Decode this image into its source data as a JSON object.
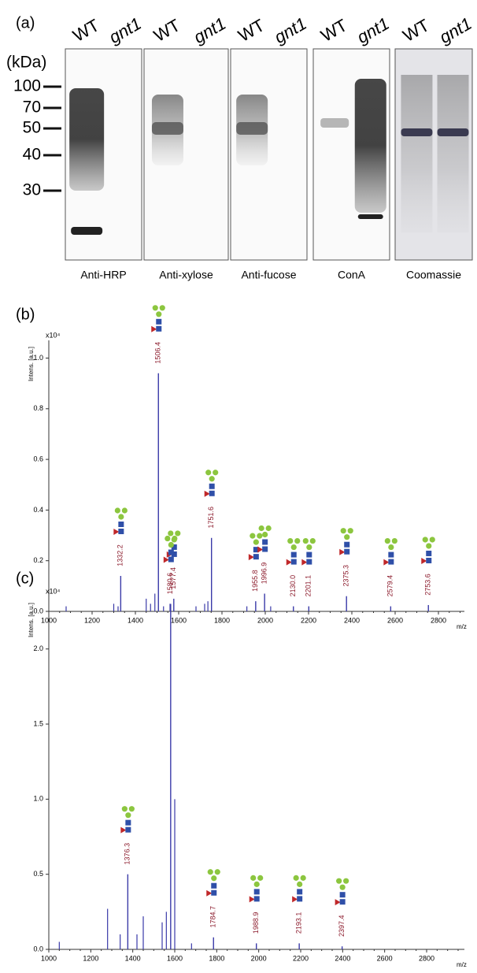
{
  "panel_a": {
    "label": "(a)",
    "unit": "(kDa)",
    "markers": [
      100,
      70,
      50,
      40,
      30
    ],
    "blots": [
      {
        "name": "Anti-HRP",
        "lanes": [
          "WT",
          "gnt1"
        ]
      },
      {
        "name": "Anti-xylose",
        "lanes": [
          "WT",
          "gnt1"
        ]
      },
      {
        "name": "Anti-fucose",
        "lanes": [
          "WT",
          "gnt1"
        ]
      },
      {
        "name": "ConA",
        "lanes": [
          "WT",
          "gnt1"
        ]
      },
      {
        "name": "Coomassie",
        "lanes": [
          "WT",
          "gnt1"
        ]
      }
    ]
  },
  "chart_data": [
    {
      "type": "spectrum",
      "label": "(b)",
      "y_label": "Intens. [a.u.]",
      "y_multiplier": "x10⁴",
      "x_label": "m/z",
      "xlim": [
        1000,
        2920
      ],
      "xticks": [
        1000,
        1200,
        1400,
        1600,
        1800,
        2000,
        2200,
        2400,
        2600,
        2800
      ],
      "ylim": [
        0,
        1.07
      ],
      "yticks": [
        {
          "value": 0,
          "label": "0.0"
        },
        0.2,
        0.4,
        0.6,
        0.8,
        {
          "value": 1,
          "label": "1.0"
        }
      ],
      "x": [
        1332.2,
        1506.4,
        1577.4,
        1751.6,
        1955.8,
        1996.9,
        2130.0,
        2201.1,
        2375.3,
        2579.4,
        2753.6
      ],
      "labels": [
        "1332.2",
        "1506.4",
        "1577.4",
        "1751.6",
        "1955.8",
        "1996.9",
        "2130.0",
        "2201.1",
        "2375.3",
        "2579.4",
        "2753.6"
      ],
      "values": [
        0.14,
        0.94,
        0.05,
        0.29,
        0.04,
        0.07,
        0.02,
        0.02,
        0.06,
        0.02,
        0.025
      ],
      "minor_x": [
        1080,
        1300,
        1320,
        1450,
        1470,
        1490,
        1530,
        1560,
        1680,
        1720,
        1735,
        1915,
        2025
      ],
      "minor_values": [
        0.02,
        0.03,
        0.02,
        0.05,
        0.03,
        0.07,
        0.02,
        0.03,
        0.02,
        0.03,
        0.04,
        0.02,
        0.02
      ],
      "color": "#3a3aa8",
      "label_color": "#8b1a2b"
    },
    {
      "type": "spectrum",
      "label": "(c)",
      "y_label": "Intens. [a.u.]",
      "y_multiplier": "x10⁴",
      "x_label": "m/z",
      "xlim": [
        1000,
        2980
      ],
      "xticks": [
        1000,
        1200,
        1400,
        1600,
        1800,
        2000,
        2200,
        2400,
        2600,
        2800
      ],
      "ylim": [
        0,
        2.35
      ],
      "yticks": [
        {
          "value": 0,
          "label": "0.0"
        },
        0.5,
        {
          "value": 1,
          "label": "1.0"
        },
        1.5,
        {
          "value": 2,
          "label": "2.0"
        }
      ],
      "x": [
        1376.3,
        1580.6,
        1784.7,
        1988.9,
        2193.1,
        2397.4
      ],
      "labels": [
        "1376.3",
        "1580.6",
        "1784.7",
        "1988.9",
        "2193.1",
        "2397.4"
      ],
      "values": [
        0.5,
        2.3,
        0.08,
        0.04,
        0.04,
        0.02
      ],
      "minor_x": [
        1050,
        1280,
        1340,
        1420,
        1450,
        1540,
        1560,
        1600,
        1680
      ],
      "minor_values": [
        0.05,
        0.27,
        0.1,
        0.1,
        0.22,
        0.18,
        0.25,
        1.0,
        0.04
      ],
      "color": "#3a3aa8",
      "label_color": "#8b1a2b"
    }
  ]
}
